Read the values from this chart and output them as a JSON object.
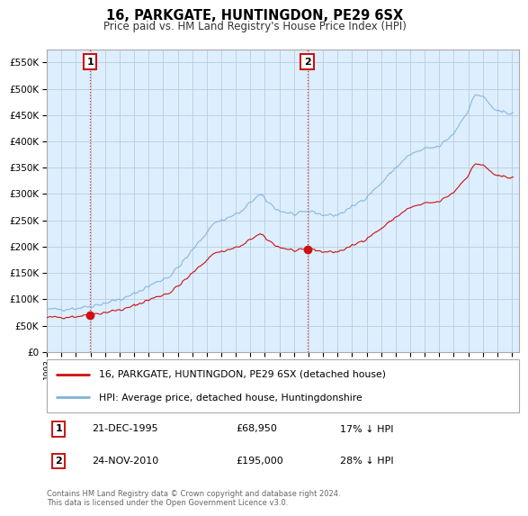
{
  "title": "16, PARKGATE, HUNTINGDON, PE29 6SX",
  "subtitle": "Price paid vs. HM Land Registry's House Price Index (HPI)",
  "legend_line1": "16, PARKGATE, HUNTINGDON, PE29 6SX (detached house)",
  "legend_line2": "HPI: Average price, detached house, Huntingdonshire",
  "annotation1_date": "21-DEC-1995",
  "annotation1_price": "£68,950",
  "annotation1_hpi": "17% ↓ HPI",
  "annotation2_date": "24-NOV-2010",
  "annotation2_price": "£195,000",
  "annotation2_hpi": "28% ↓ HPI",
  "footer": "Contains HM Land Registry data © Crown copyright and database right 2024.\nThis data is licensed under the Open Government Licence v3.0.",
  "sale1_year": 1995.97,
  "sale1_price": 68950,
  "sale2_year": 2010.92,
  "sale2_price": 195000,
  "hpi_color": "#7fb2d8",
  "sale_color": "#cc1111",
  "annotation_box_color": "#cc1111",
  "bg_color": "#ddeeff",
  "grid_color": "#bbccdd",
  "ylim_min": 0,
  "ylim_max": 575000,
  "xlim_min": 1993.0,
  "xlim_max": 2025.5
}
